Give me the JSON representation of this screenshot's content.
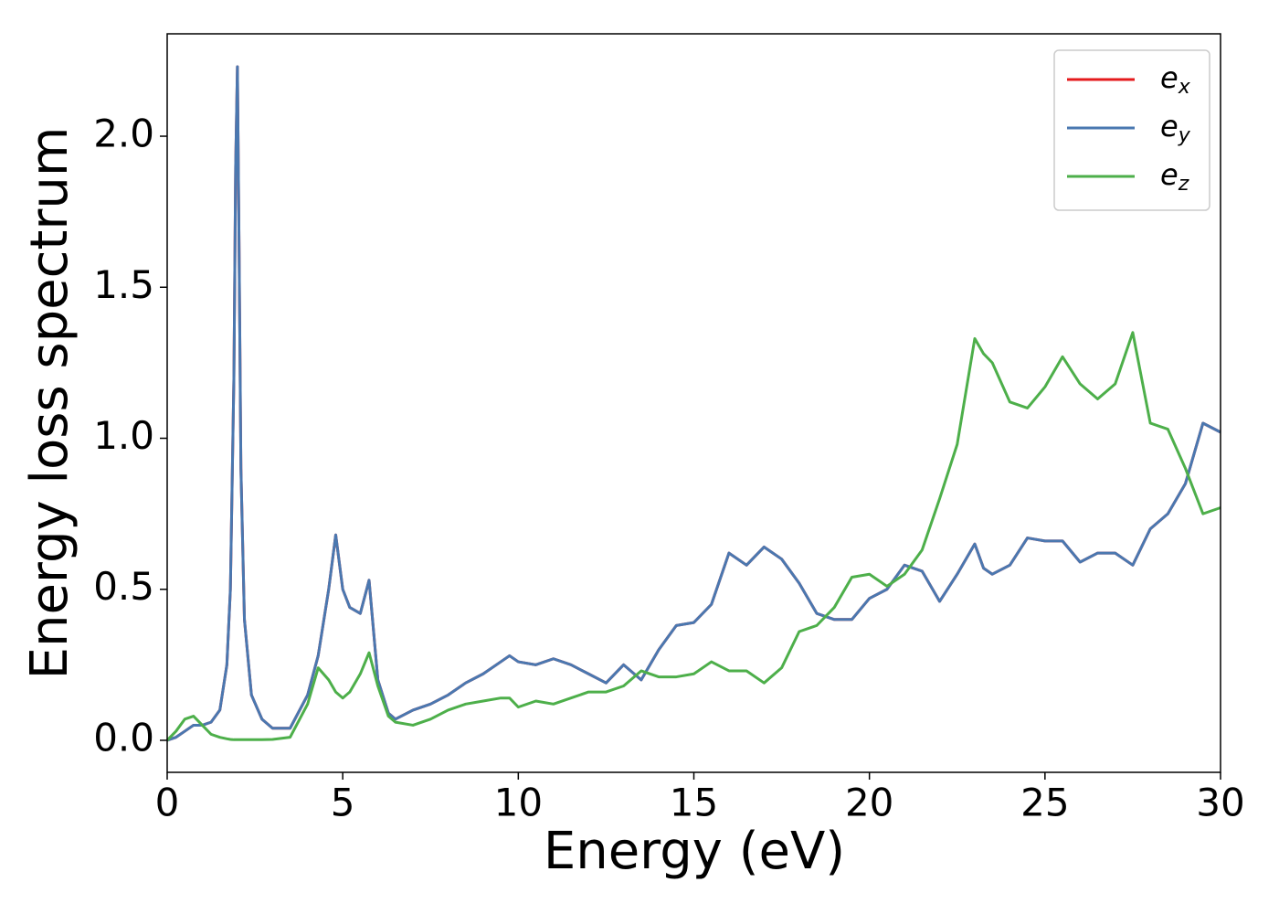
{
  "chart_data": {
    "type": "line",
    "xlabel": "Energy (eV)",
    "ylabel": "Energy loss spectrum",
    "x": [
      0,
      0.25,
      0.5,
      0.75,
      1,
      1.25,
      1.5,
      1.7,
      1.8,
      1.9,
      1.95,
      2.0,
      2.05,
      2.1,
      2.2,
      2.4,
      2.7,
      3,
      3.5,
      4,
      4.3,
      4.6,
      4.8,
      5,
      5.2,
      5.5,
      5.75,
      6,
      6.3,
      6.5,
      7,
      7.5,
      8,
      8.5,
      9,
      9.5,
      9.75,
      10,
      10.5,
      11,
      11.5,
      12,
      12.5,
      13,
      13.5,
      14,
      14.5,
      15,
      15.5,
      16,
      16.5,
      17,
      17.5,
      18,
      18.5,
      19,
      19.5,
      20,
      20.5,
      21,
      21.5,
      22,
      22.5,
      23,
      23.25,
      23.5,
      24,
      24.5,
      25,
      25.5,
      26,
      26.5,
      27,
      27.5,
      28,
      28.5,
      29,
      29.5,
      30
    ],
    "series": [
      {
        "name": "ex",
        "color": "#e41a1c",
        "values": [
          0,
          0.01,
          0.03,
          0.05,
          0.05,
          0.06,
          0.1,
          0.25,
          0.5,
          1.2,
          1.9,
          2.23,
          1.6,
          0.9,
          0.4,
          0.15,
          0.07,
          0.04,
          0.04,
          0.15,
          0.28,
          0.5,
          0.68,
          0.5,
          0.44,
          0.42,
          0.53,
          0.2,
          0.09,
          0.07,
          0.1,
          0.12,
          0.15,
          0.19,
          0.22,
          0.26,
          0.28,
          0.26,
          0.25,
          0.27,
          0.25,
          0.22,
          0.19,
          0.25,
          0.2,
          0.3,
          0.38,
          0.39,
          0.45,
          0.62,
          0.58,
          0.64,
          0.6,
          0.52,
          0.42,
          0.4,
          0.4,
          0.47,
          0.5,
          0.58,
          0.56,
          0.46,
          0.55,
          0.65,
          0.57,
          0.55,
          0.58,
          0.67,
          0.66,
          0.66,
          0.59,
          0.62,
          0.62,
          0.58,
          0.7,
          0.75,
          0.85,
          1.05,
          1.02
        ]
      },
      {
        "name": "ey",
        "color": "#4a78b0",
        "values": [
          0,
          0.01,
          0.03,
          0.05,
          0.05,
          0.06,
          0.1,
          0.25,
          0.5,
          1.2,
          1.9,
          2.23,
          1.6,
          0.9,
          0.4,
          0.15,
          0.07,
          0.04,
          0.04,
          0.15,
          0.28,
          0.5,
          0.68,
          0.5,
          0.44,
          0.42,
          0.53,
          0.2,
          0.09,
          0.07,
          0.1,
          0.12,
          0.15,
          0.19,
          0.22,
          0.26,
          0.28,
          0.26,
          0.25,
          0.27,
          0.25,
          0.22,
          0.19,
          0.25,
          0.2,
          0.3,
          0.38,
          0.39,
          0.45,
          0.62,
          0.58,
          0.64,
          0.6,
          0.52,
          0.42,
          0.4,
          0.4,
          0.47,
          0.5,
          0.58,
          0.56,
          0.46,
          0.55,
          0.65,
          0.57,
          0.55,
          0.58,
          0.67,
          0.66,
          0.66,
          0.59,
          0.62,
          0.62,
          0.58,
          0.7,
          0.75,
          0.85,
          1.05,
          1.02
        ]
      },
      {
        "name": "ez",
        "color": "#4daf4a",
        "values": [
          0,
          0.03,
          0.07,
          0.08,
          0.05,
          0.02,
          0.01,
          0.005,
          0.003,
          0.002,
          0.002,
          0.002,
          0.002,
          0.002,
          0.002,
          0.002,
          0.002,
          0.003,
          0.01,
          0.12,
          0.24,
          0.2,
          0.16,
          0.14,
          0.16,
          0.22,
          0.29,
          0.18,
          0.08,
          0.06,
          0.05,
          0.07,
          0.1,
          0.12,
          0.13,
          0.14,
          0.14,
          0.11,
          0.13,
          0.12,
          0.14,
          0.16,
          0.16,
          0.18,
          0.23,
          0.21,
          0.21,
          0.22,
          0.26,
          0.23,
          0.23,
          0.19,
          0.24,
          0.36,
          0.38,
          0.44,
          0.54,
          0.55,
          0.51,
          0.55,
          0.63,
          0.8,
          0.98,
          1.33,
          1.28,
          1.25,
          1.12,
          1.1,
          1.17,
          1.27,
          1.18,
          1.13,
          1.18,
          1.35,
          1.05,
          1.03,
          0.9,
          0.75,
          0.77
        ]
      }
    ],
    "xlim": [
      0,
      30
    ],
    "xticks": [
      0,
      5,
      10,
      15,
      20,
      25,
      30
    ],
    "ylim": [
      -0.106,
      2.339
    ],
    "yticks": [
      {
        "value": 0,
        "label": "0.0"
      },
      0.5,
      {
        "value": 1,
        "label": "1.0"
      },
      1.5,
      {
        "value": 2,
        "label": "2.0"
      }
    ],
    "grid": false,
    "legend": "upper right"
  }
}
